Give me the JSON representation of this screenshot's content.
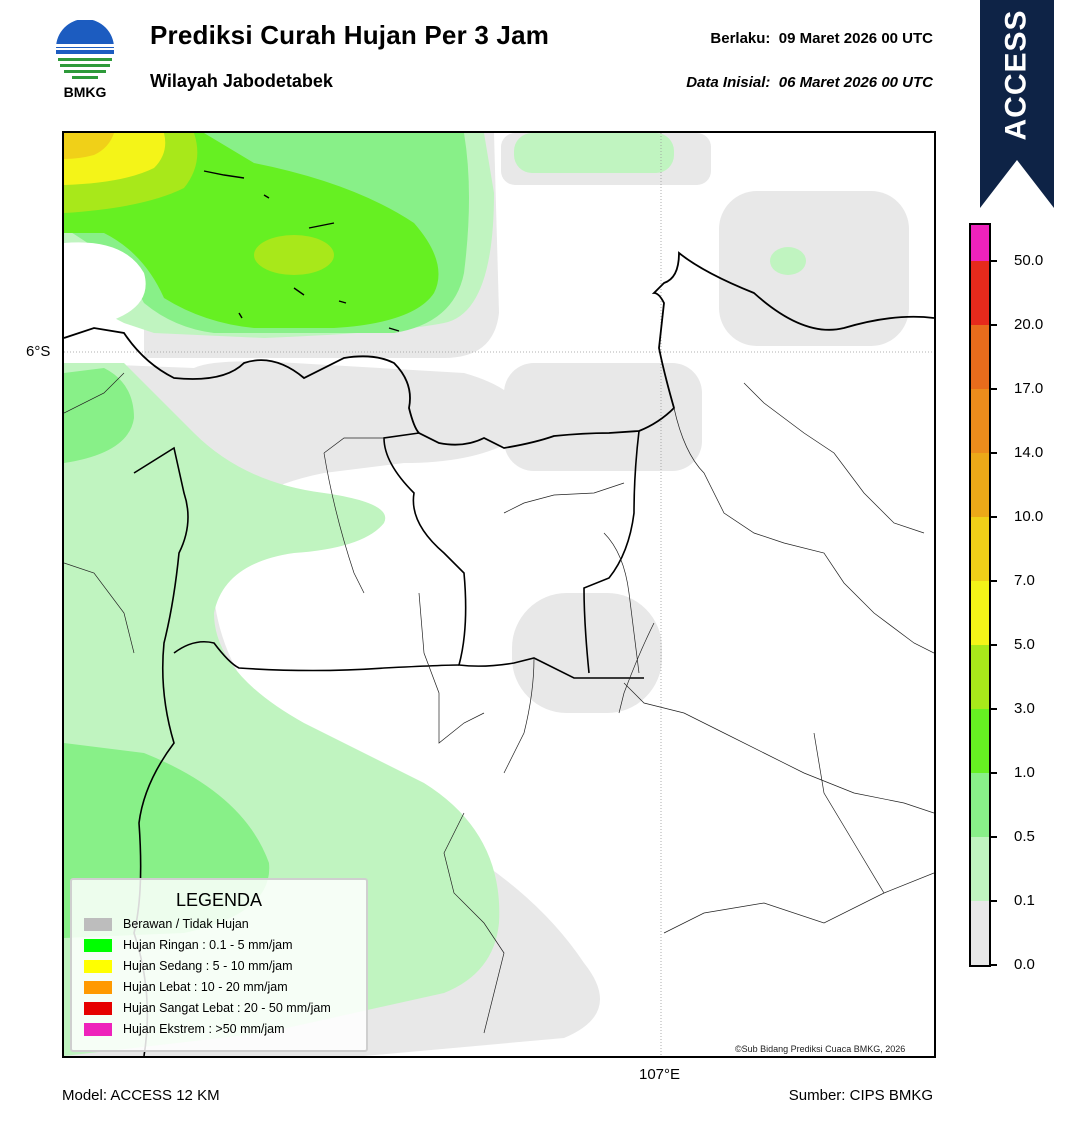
{
  "header": {
    "title": "Prediksi Curah Hujan Per 3 Jam",
    "subtitle": "Wilayah Jabodetabek",
    "valid_label": "Berlaku:  09 Maret 2026 00 UTC",
    "init_label": "Data Inisial:  06 Maret 2026 00 UTC",
    "logo_text": "BMKG",
    "model_badge": "ACCESS",
    "logo_icon": "bmkg-logo-icon"
  },
  "map": {
    "lat_label": "6°S",
    "lon_label": "107°E",
    "copyright": "©Sub Bidang Prediksi Cuaca BMKG, 2026"
  },
  "legend": {
    "title": "LEGENDA",
    "items": [
      {
        "label": "Berawan / Tidak Hujan",
        "color": "#bdbdbd"
      },
      {
        "label": "Hujan Ringan : 0.1 - 5 mm/jam",
        "color": "#00ff00"
      },
      {
        "label": "Hujan Sedang : 5 - 10 mm/jam",
        "color": "#ffff00"
      },
      {
        "label": "Hujan Lebat : 10 - 20 mm/jam",
        "color": "#ff9900"
      },
      {
        "label": "Hujan Sangat Lebat : 20 - 50 mm/jam",
        "color": "#e60000"
      },
      {
        "label": "Hujan Ekstrem : >50 mm/jam",
        "color": "#ee22bb"
      }
    ]
  },
  "colorbar": {
    "ticks": [
      "0.0",
      "0.1",
      "0.5",
      "1.0",
      "3.0",
      "5.0",
      "7.0",
      "10.0",
      "14.0",
      "17.0",
      "20.0",
      "50.0"
    ],
    "colors": [
      "#e8e8e8",
      "#c0f4c0",
      "#88f088",
      "#66f022",
      "#a8e81a",
      "#f4f418",
      "#f0d018",
      "#eca818",
      "#ec8c1c",
      "#e86c1c",
      "#e62a1c",
      "#ee22bb"
    ]
  },
  "footer": {
    "model": "Model: ACCESS 12 KM",
    "source": "Sumber: CIPS BMKG"
  }
}
